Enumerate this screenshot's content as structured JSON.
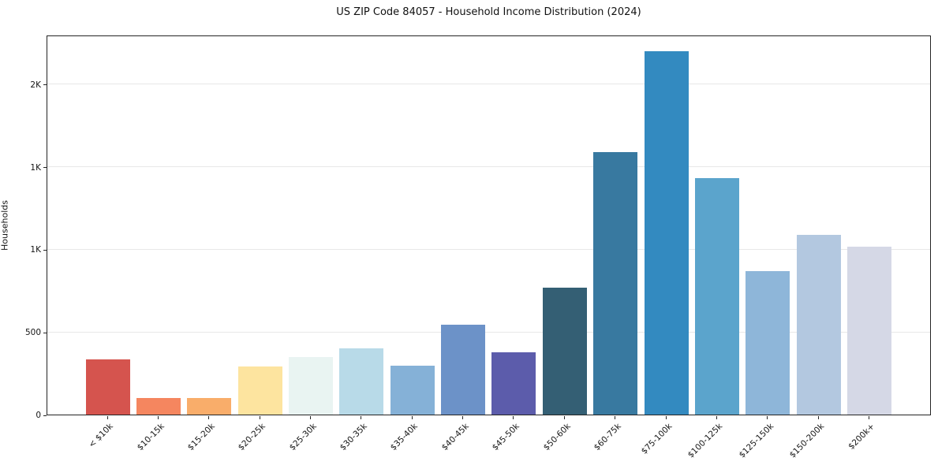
{
  "page": {
    "background": "#ffffff"
  },
  "chart_data": {
    "type": "bar",
    "title": "US ZIP Code 84057 - Household Income Distribution (2024)",
    "xlabel": "",
    "ylabel": "Households",
    "ylim": [
      0,
      2300
    ],
    "grid": "horizontal-light",
    "legend": "none",
    "frame": "full-box",
    "yticks": [
      {
        "value": 0,
        "label": "0"
      },
      {
        "value": 500,
        "label": "500"
      },
      {
        "value": 1000,
        "label": "1K"
      },
      {
        "value": 1500,
        "label": "1K"
      },
      {
        "value": 2000,
        "label": "2K"
      }
    ],
    "categories": [
      "< $10k",
      "$10-15k",
      "$15-20k",
      "$20-25k",
      "$25-30k",
      "$30-35k",
      "$35-40k",
      "$40-45k",
      "$45-50k",
      "$50-60k",
      "$60-75k",
      "$75-100k",
      "$100-125k",
      "$125-150k",
      "$150-200k",
      "$200k+"
    ],
    "values": [
      335,
      100,
      100,
      290,
      350,
      400,
      295,
      545,
      375,
      770,
      1590,
      2200,
      1430,
      870,
      1090,
      1015
    ],
    "bar_colors": [
      "#d5544e",
      "#f5865f",
      "#f9ad6a",
      "#fde49f",
      "#e9f4f2",
      "#b8dae8",
      "#85b1d7",
      "#6c92c8",
      "#5c5cab",
      "#345f74",
      "#3879a0",
      "#338ac0",
      "#5ba4cc",
      "#8eb6d9",
      "#b3c8e0",
      "#d5d8e6"
    ]
  },
  "colors": {
    "axis_frame": "#242424",
    "gridline": "#e8e8e8",
    "text": "#141414",
    "background": "#ffffff"
  }
}
